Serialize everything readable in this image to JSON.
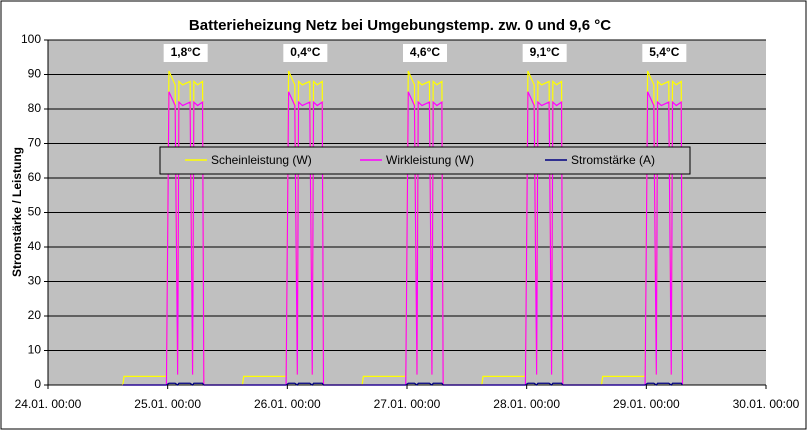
{
  "chart_data": {
    "type": "line",
    "title": "Batterieheizung Netz bei Umgebungstemp. zw. 0 und 9,6 °C",
    "y_label": "Stromstärke / Leistung",
    "annotations": [
      "1,8°C",
      "0,4°C",
      "4,6°C",
      "9,1°C",
      "5,4°C"
    ],
    "x": [
      "24.01. 15:00",
      "24.01. 15:15",
      "24.01. 23:45",
      "25.01. 00:15",
      "25.01. 01:30",
      "25.01. 02:00",
      "25.01. 02:15",
      "25.01. 03:00",
      "25.01. 04:30",
      "25.01. 05:00",
      "25.01. 05:15",
      "25.01. 06:00",
      "25.01. 07:00",
      "25.01. 07:15",
      "25.01. 15:00",
      "25.01. 15:15",
      "25.01. 23:45",
      "26.01. 00:15",
      "26.01. 01:30",
      "26.01. 02:00",
      "26.01. 02:15",
      "26.01. 03:00",
      "26.01. 04:30",
      "26.01. 05:00",
      "26.01. 05:15",
      "26.01. 06:00",
      "26.01. 07:00",
      "26.01. 07:15",
      "26.01. 15:00",
      "26.01. 15:15",
      "26.01. 23:45",
      "27.01. 00:15",
      "27.01. 01:30",
      "27.01. 02:00",
      "27.01. 02:15",
      "27.01. 03:00",
      "27.01. 04:30",
      "27.01. 05:00",
      "27.01. 05:15",
      "27.01. 06:00",
      "27.01. 07:00",
      "27.01. 07:15",
      "27.01. 15:00",
      "27.01. 15:15",
      "27.01. 23:45",
      "28.01. 00:15",
      "28.01. 01:30",
      "28.01. 02:00",
      "28.01. 02:15",
      "28.01. 03:00",
      "28.01. 04:30",
      "28.01. 05:00",
      "28.01. 05:15",
      "28.01. 06:00",
      "28.01. 07:00",
      "28.01. 07:15",
      "28.01. 15:00",
      "28.01. 15:15",
      "28.01. 23:45",
      "29.01. 00:15",
      "29.01. 01:30",
      "29.01. 02:00",
      "29.01. 02:15",
      "29.01. 03:00",
      "29.01. 04:30",
      "29.01. 05:00",
      "29.01. 05:15",
      "29.01. 06:00",
      "29.01. 07:00",
      "29.01. 07:15"
    ],
    "series": [
      {
        "name": "Scheinleistung (W)",
        "color": "#ffff00",
        "values": [
          0,
          2.5,
          2.5,
          91,
          87,
          3,
          88,
          87,
          88,
          3,
          88,
          87,
          88,
          0,
          0,
          2.5,
          2.5,
          91,
          87,
          3,
          88,
          87,
          88,
          3,
          88,
          87,
          88,
          0,
          0,
          2.5,
          2.5,
          91,
          87,
          3,
          88,
          87,
          88,
          3,
          88,
          87,
          88,
          0,
          0,
          2.5,
          2.5,
          91,
          87,
          3,
          88,
          87,
          88,
          3,
          88,
          87,
          88,
          0,
          0,
          2.5,
          2.5,
          91,
          87,
          3,
          88,
          87,
          88,
          3,
          88,
          87,
          88,
          0
        ]
      },
      {
        "name": "Wirkleistung (W)",
        "color": "#ff00ff",
        "values": [
          0,
          0,
          0,
          85,
          81,
          3,
          82,
          81,
          82,
          3,
          82,
          81,
          82,
          0,
          0,
          0,
          0,
          85,
          81,
          3,
          82,
          81,
          82,
          3,
          82,
          81,
          82,
          0,
          0,
          0,
          0,
          85,
          81,
          3,
          82,
          81,
          82,
          3,
          82,
          81,
          82,
          0,
          0,
          0,
          0,
          85,
          81,
          3,
          82,
          81,
          82,
          3,
          82,
          81,
          82,
          0,
          0,
          0,
          0,
          85,
          81,
          3,
          82,
          81,
          82,
          3,
          82,
          81,
          82,
          0
        ]
      },
      {
        "name": "Stromstärke (A)",
        "color": "#000080",
        "values": [
          0,
          0,
          0,
          0.5,
          0.5,
          0,
          0.5,
          0.5,
          0.5,
          0,
          0.5,
          0.5,
          0.5,
          0,
          0,
          0,
          0,
          0.5,
          0.5,
          0,
          0.5,
          0.5,
          0.5,
          0,
          0.5,
          0.5,
          0.5,
          0,
          0,
          0,
          0,
          0.5,
          0.5,
          0,
          0.5,
          0.5,
          0.5,
          0,
          0.5,
          0.5,
          0.5,
          0,
          0,
          0,
          0,
          0.5,
          0.5,
          0,
          0.5,
          0.5,
          0.5,
          0,
          0.5,
          0.5,
          0.5,
          0,
          0,
          0,
          0,
          0.5,
          0.5,
          0,
          0.5,
          0.5,
          0.5,
          0,
          0.5,
          0.5,
          0.5,
          0
        ]
      }
    ],
    "xlim": [
      "24.01. 00:00",
      "30.01. 00:00"
    ],
    "xticks": [
      "24.01. 00:00",
      "25.01. 00:00",
      "26.01. 00:00",
      "27.01. 00:00",
      "28.01. 00:00",
      "29.01. 00:00",
      "30.01. 00:00"
    ],
    "ylim": [
      0,
      100
    ],
    "yticks": [
      0,
      10,
      20,
      30,
      40,
      50,
      60,
      70,
      80,
      90,
      100
    ],
    "grid": true,
    "plot_background": "#c0c0c0"
  }
}
